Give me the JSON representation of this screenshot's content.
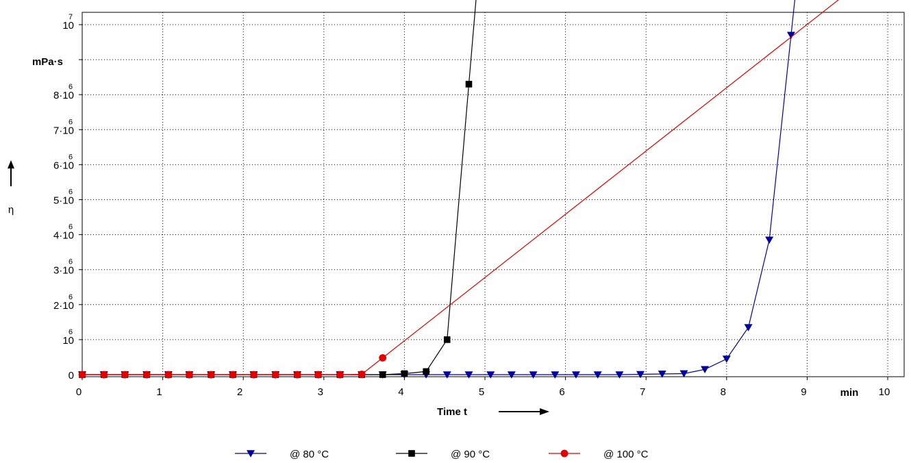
{
  "chart_data": {
    "type": "line",
    "xlabel": "Time t",
    "x_unit": "min",
    "ylabel": "η",
    "y_unit": "mPa·s",
    "xlim": [
      0,
      10
    ],
    "ylim": [
      0,
      10000000
    ],
    "grid": true,
    "legend_position": "bottom",
    "x_ticks": [
      {
        "value": 0,
        "label": "0"
      },
      {
        "value": 1,
        "label": "1"
      },
      {
        "value": 2,
        "label": "2"
      },
      {
        "value": 3,
        "label": "3"
      },
      {
        "value": 4,
        "label": "4"
      },
      {
        "value": 5,
        "label": "5"
      },
      {
        "value": 6,
        "label": "6"
      },
      {
        "value": 7,
        "label": "7"
      },
      {
        "value": 8,
        "label": "8"
      },
      {
        "value": 9,
        "label": "9"
      },
      {
        "value": 10,
        "label": "10"
      }
    ],
    "y_ticks": [
      {
        "value": 0,
        "base": "0",
        "exp": ""
      },
      {
        "value": 1000000,
        "base": "10",
        "exp": "6"
      },
      {
        "value": 2000000,
        "base": "2·10",
        "exp": "6"
      },
      {
        "value": 3000000,
        "base": "3·10",
        "exp": "6"
      },
      {
        "value": 4000000,
        "base": "4·10",
        "exp": "6"
      },
      {
        "value": 5000000,
        "base": "5·10",
        "exp": "6"
      },
      {
        "value": 6000000,
        "base": "6·10",
        "exp": "6"
      },
      {
        "value": 7000000,
        "base": "7·10",
        "exp": "6"
      },
      {
        "value": 8000000,
        "base": "8·10",
        "exp": "6"
      },
      {
        "value": 9000000,
        "base": "",
        "exp": ""
      },
      {
        "value": 10000000,
        "base": "10",
        "exp": "7"
      }
    ],
    "series": [
      {
        "name": "@ 80 °C",
        "color": "#0000a0",
        "marker": "triangle-down",
        "x": [
          0,
          0.27,
          0.53,
          0.8,
          1.07,
          1.33,
          1.6,
          1.87,
          2.13,
          2.4,
          2.67,
          2.93,
          3.2,
          3.47,
          3.73,
          4.0,
          4.27,
          4.53,
          4.8,
          5.07,
          5.33,
          5.6,
          5.87,
          6.13,
          6.4,
          6.67,
          6.93,
          7.2,
          7.47,
          7.73,
          8.0,
          8.27,
          8.53,
          8.8
        ],
        "y": [
          0,
          0,
          0,
          0,
          0,
          0,
          0,
          0,
          0,
          0,
          0,
          0,
          0,
          0,
          0,
          0,
          0,
          0,
          0,
          0,
          0,
          0,
          0,
          0,
          0,
          0,
          10000,
          20000,
          30000,
          150000,
          450000,
          1350000,
          3850000,
          9700000
        ],
        "continues_above": 10800000
      },
      {
        "name": "@ 90 °C",
        "color": "#000000",
        "marker": "square",
        "x": [
          0,
          0.27,
          0.53,
          0.8,
          1.07,
          1.33,
          1.6,
          1.87,
          2.13,
          2.4,
          2.67,
          2.93,
          3.2,
          3.47,
          3.73,
          4.0,
          4.27,
          4.53,
          4.8
        ],
        "y": [
          0,
          0,
          0,
          0,
          0,
          0,
          0,
          0,
          0,
          0,
          0,
          0,
          0,
          0,
          0,
          30000,
          90000,
          1000000,
          8300000
        ],
        "continues_above": 10800000
      },
      {
        "name": "@ 100 °C",
        "color": "#e00000",
        "marker": "circle",
        "x": [
          0,
          0.27,
          0.53,
          0.8,
          1.07,
          1.33,
          1.6,
          1.87,
          2.13,
          2.4,
          2.67,
          2.93,
          3.2,
          3.47,
          3.73
        ],
        "y": [
          0,
          0,
          0,
          0,
          0,
          0,
          0,
          0,
          0,
          0,
          0,
          0,
          0,
          10000,
          480000
        ],
        "continues_above": 10800000
      }
    ]
  }
}
